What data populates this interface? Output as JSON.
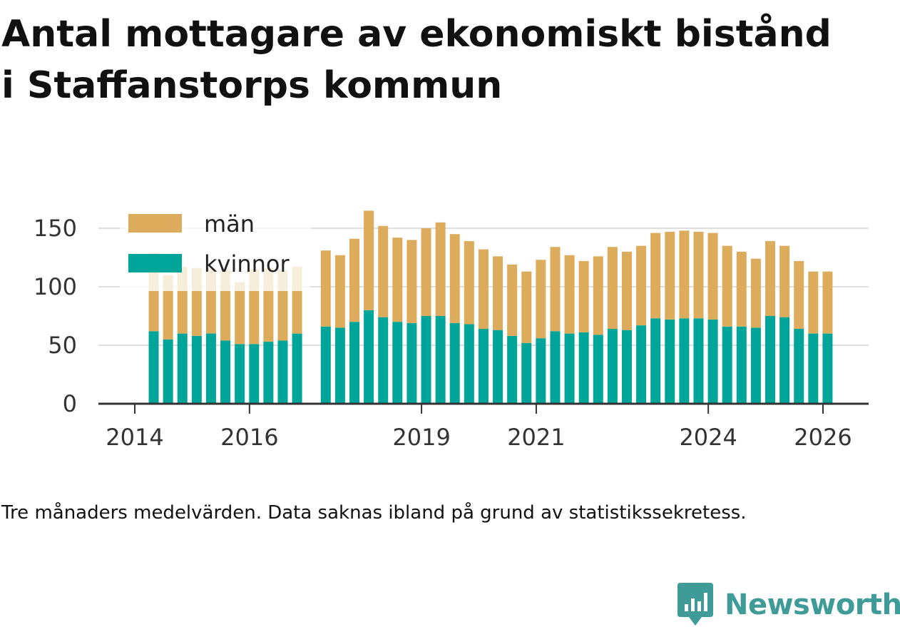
{
  "title_lines": [
    "Antal mottagare av ekonomiskt bistånd",
    "i Staffanstorps kommun"
  ],
  "note": "Tre månaders medelvärden. Data saknas ibland på grund av statistikssekretess.",
  "brand": {
    "name": "Newsworthy",
    "icon": "newsworthy-logo-icon",
    "color": "#3e9b97"
  },
  "chart_data": {
    "type": "bar",
    "stacked": true,
    "title": "Antal mottagare av ekonomiskt bistånd i Staffanstorps kommun",
    "xlabel": "",
    "ylabel": "",
    "ylim": [
      0,
      165
    ],
    "grid": true,
    "legend_position": "top-left",
    "yticks": [
      "0",
      "50",
      "100",
      "150"
    ],
    "xticks": [
      {
        "label": "2014",
        "t": 2014.0
      },
      {
        "label": "2016",
        "t": 2016.0
      },
      {
        "label": "2019",
        "t": 2019.0
      },
      {
        "label": "2021",
        "t": 2021.0
      },
      {
        "label": "2024",
        "t": 2024.0
      },
      {
        "label": "2026",
        "t": 2026.0
      }
    ],
    "x": [
      2014.33,
      2014.58,
      2014.83,
      2015.08,
      2015.33,
      2015.58,
      2015.83,
      2016.08,
      2016.33,
      2016.58,
      2016.83,
      2017.33,
      2017.58,
      2017.83,
      2018.08,
      2018.33,
      2018.58,
      2018.83,
      2019.08,
      2019.33,
      2019.58,
      2019.83,
      2020.08,
      2020.33,
      2020.58,
      2020.83,
      2021.08,
      2021.33,
      2021.58,
      2021.83,
      2022.08,
      2022.33,
      2022.58,
      2022.83,
      2023.08,
      2023.33,
      2023.58,
      2023.83,
      2024.08,
      2024.33,
      2024.58,
      2024.83,
      2025.08,
      2025.33,
      2025.58,
      2025.83,
      2026.08
    ],
    "series": [
      {
        "name": "kvinnor",
        "color": "#00a599",
        "values": [
          62,
          55,
          60,
          58,
          60,
          54,
          51,
          51,
          53,
          54,
          60,
          66,
          65,
          70,
          80,
          74,
          70,
          69,
          75,
          75,
          69,
          68,
          64,
          63,
          58,
          52,
          56,
          62,
          60,
          61,
          59,
          64,
          63,
          67,
          73,
          72,
          73,
          73,
          72,
          66,
          66,
          65,
          75,
          74,
          64,
          60,
          60
        ]
      },
      {
        "name": "män",
        "color": "#dcac5c",
        "values": [
          67,
          55,
          57,
          58,
          56,
          61,
          53,
          64,
          63,
          60,
          57,
          65,
          62,
          71,
          85,
          78,
          72,
          71,
          75,
          80,
          76,
          71,
          68,
          63,
          61,
          61,
          67,
          72,
          67,
          61,
          67,
          70,
          67,
          68,
          73,
          75,
          75,
          74,
          74,
          69,
          64,
          59,
          64,
          61,
          58,
          53,
          53
        ]
      }
    ]
  }
}
